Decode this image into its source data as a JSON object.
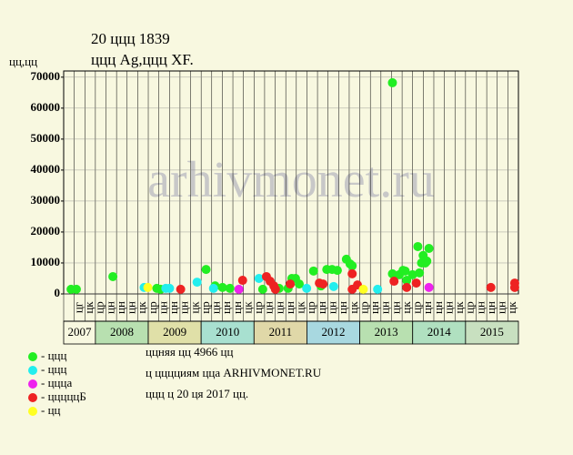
{
  "chart_data": {
    "type": "scatter",
    "title": "20 ццц 1839",
    "subtitle": "ццц Ag,ццц XF.",
    "y_label": "цц,цц",
    "watermark": "arhivmonet.ru",
    "xlim": [
      2007.41,
      2016
    ],
    "ylim": [
      0,
      72000
    ],
    "yticks": [
      0,
      10000,
      20000,
      30000,
      40000,
      50000,
      60000,
      70000
    ],
    "grid": true,
    "periods": [
      null,
      "цг",
      "цк",
      "цр",
      "цн",
      "цн",
      "цн",
      "цк",
      "цр",
      "цн",
      "цн",
      "цн",
      "цк",
      "цр",
      "цн",
      "цн",
      "цн",
      "цк",
      "цр",
      "цн",
      "цн",
      "цн",
      "цк",
      "цр",
      "цн",
      "цн",
      "цн",
      "цк",
      "цр",
      "цн",
      "цн",
      "цн",
      "цк",
      "цр",
      "цн",
      "цн",
      "цн",
      "цк",
      "цр",
      "цн",
      "цн",
      "цн",
      "цк"
    ],
    "years": [
      {
        "label": "2007",
        "color": "#f8f8e0"
      },
      {
        "label": "2008",
        "color": "#b8e0b0"
      },
      {
        "label": "2009",
        "color": "#e0e0a8"
      },
      {
        "label": "2010",
        "color": "#a8e0d0"
      },
      {
        "label": "2011",
        "color": "#e0d8a8"
      },
      {
        "label": "2012",
        "color": "#a8d8e0"
      },
      {
        "label": "2013",
        "color": "#b8e0b0"
      },
      {
        "label": "2014",
        "color": "#b0e0c0"
      },
      {
        "label": "2015",
        "color": "#c8e0c0"
      }
    ],
    "series": [
      {
        "name": "- ццц",
        "color": "#22ee22",
        "x": [
          2007.55,
          2007.65,
          2008.34,
          2009.17,
          2009.24,
          2010.1,
          2010.27,
          2010.41,
          2010.55,
          2011.17,
          2011.48,
          2011.65,
          2011.72,
          2011.79,
          2011.86,
          2012.13,
          2012.27,
          2012.38,
          2012.48,
          2012.58,
          2012.75,
          2012.82,
          2012.86,
          2013.62,
          2013.62,
          2013.75,
          2013.82,
          2013.86,
          2013.89,
          2014.0,
          2014.1,
          2014.13,
          2014.17,
          2014.2,
          2014.24,
          2014.27,
          2014.31
        ],
        "values": [
          1500,
          1500,
          5600,
          1800,
          1500,
          7900,
          2600,
          2100,
          1800,
          1500,
          1800,
          1800,
          5000,
          5000,
          3200,
          7400,
          2600,
          7900,
          7900,
          7600,
          11200,
          9700,
          9100,
          6500,
          68200,
          6200,
          7600,
          7400,
          4400,
          6200,
          15300,
          6800,
          10000,
          12400,
          10000,
          10600,
          14700
        ]
      },
      {
        "name": "- ццц",
        "color": "#22eeee",
        "x": [
          2008.93,
          2009.34,
          2009.41,
          2009.93,
          2010.24,
          2011.1,
          2012.0,
          2012.51,
          2013.34
        ],
        "values": [
          2100,
          1800,
          1800,
          3800,
          1800,
          5000,
          1800,
          2400,
          1500
        ]
      },
      {
        "name": "- ццца",
        "color": "#ee22ee",
        "x": [
          2010.72,
          2014.31
        ],
        "values": [
          1500,
          2100
        ]
      },
      {
        "name": "- цццццБ",
        "color": "#ee2222",
        "x": [
          2009.62,
          2010.79,
          2011.24,
          2011.31,
          2011.38,
          2011.41,
          2011.69,
          2012.24,
          2012.31,
          2012.86,
          2012.86,
          2012.96,
          2013.65,
          2013.89,
          2014.07,
          2015.48,
          2015.93,
          2015.93
        ],
        "values": [
          1500,
          4400,
          5600,
          4100,
          2600,
          1500,
          3200,
          3500,
          3200,
          6500,
          1500,
          2900,
          4100,
          2100,
          3500,
          2100,
          3500,
          2100
        ]
      },
      {
        "name": "- цц",
        "color": "#ffff22",
        "x": [
          2009.0,
          2013.07
        ],
        "values": [
          2100,
          1500
        ]
      }
    ],
    "notes": [
      "ццняя цц 4966 цц",
      "ц цццциям цца ARHIVMONET.RU",
      "ццц ц 20 ця 2017 цц."
    ]
  }
}
